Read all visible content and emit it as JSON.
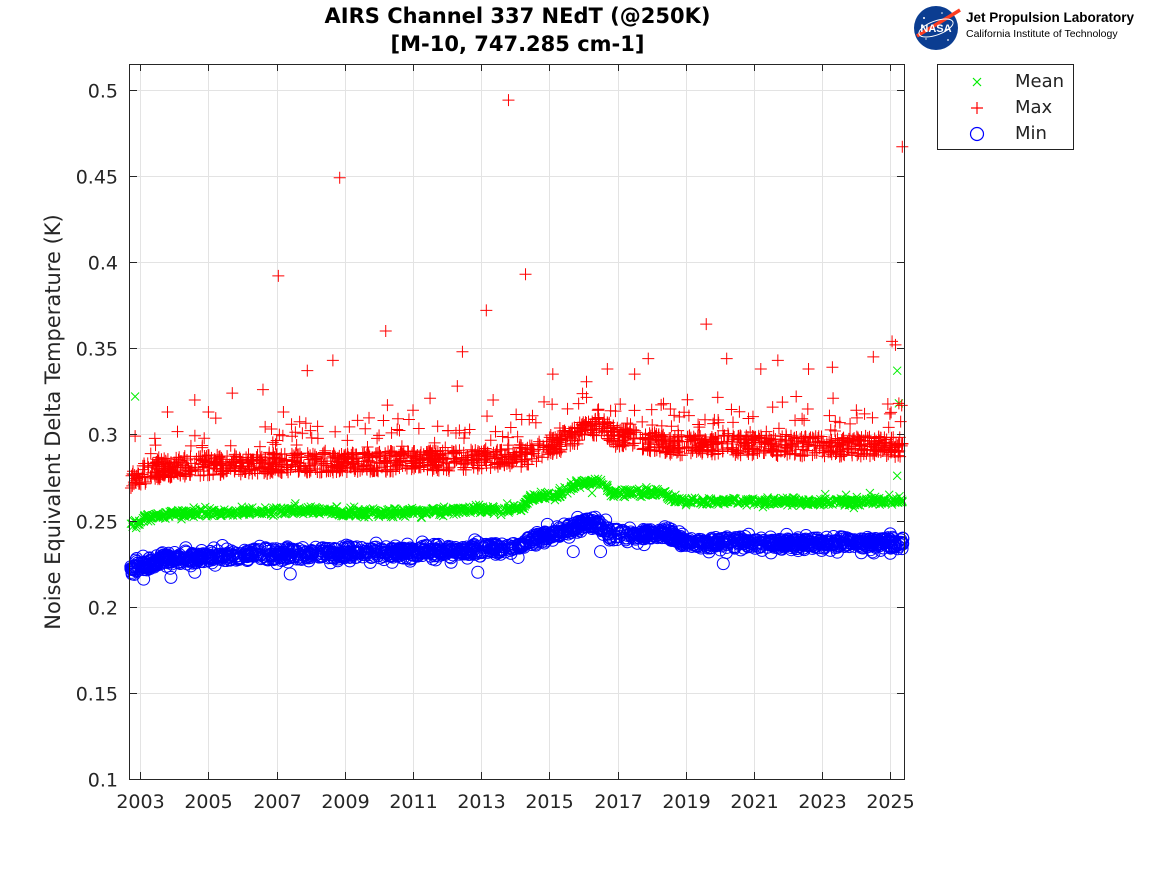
{
  "chart_data": {
    "type": "scatter",
    "title": "AIRS Channel 337 NEdT (@250K)",
    "subtitle": "[M-10, 747.285 cm-1]",
    "xlabel": "",
    "ylabel": "Noise Equivalent Delta Temperature (K)",
    "xlim": [
      2002.7,
      2025.4
    ],
    "ylim": [
      0.1,
      0.515
    ],
    "x_ticks": [
      "2003",
      "2005",
      "2007",
      "2009",
      "2011",
      "2013",
      "2015",
      "2017",
      "2019",
      "2021",
      "2023",
      "2025"
    ],
    "y_ticks": [
      "0.1",
      "0.15",
      "0.2",
      "0.25",
      "0.3",
      "0.35",
      "0.4",
      "0.45",
      "0.5"
    ],
    "grid": true,
    "legend_position": "outside-top-right",
    "series": [
      {
        "name": "Mean",
        "marker": "x",
        "color": "#00ee00",
        "trend": [
          [
            2002.7,
            0.247
          ],
          [
            2003.3,
            0.252
          ],
          [
            2004.0,
            0.254
          ],
          [
            2008.5,
            0.256
          ],
          [
            2008.9,
            0.254
          ],
          [
            2014.2,
            0.257
          ],
          [
            2014.4,
            0.263
          ],
          [
            2015.5,
            0.266
          ],
          [
            2015.8,
            0.272
          ],
          [
            2016.6,
            0.272
          ],
          [
            2016.8,
            0.266
          ],
          [
            2018.4,
            0.266
          ],
          [
            2018.6,
            0.261
          ],
          [
            2025.4,
            0.261
          ]
        ],
        "outliers": [
          [
            2002.85,
            0.322
          ],
          [
            2007.55,
            0.26
          ],
          [
            2015.9,
            0.269
          ],
          [
            2016.25,
            0.266
          ],
          [
            2023.7,
            0.265
          ],
          [
            2024.4,
            0.266
          ],
          [
            2025.2,
            0.337
          ],
          [
            2025.25,
            0.318
          ],
          [
            2025.2,
            0.276
          ]
        ]
      },
      {
        "name": "Max",
        "marker": "+",
        "color": "#ff0000",
        "trend": [
          [
            2002.7,
            0.272
          ],
          [
            2003.5,
            0.278
          ],
          [
            2004.5,
            0.28
          ],
          [
            2008.0,
            0.282
          ],
          [
            2012.0,
            0.283
          ],
          [
            2014.2,
            0.285
          ],
          [
            2015.0,
            0.291
          ],
          [
            2015.7,
            0.297
          ],
          [
            2016.2,
            0.303
          ],
          [
            2016.7,
            0.301
          ],
          [
            2017.0,
            0.296
          ],
          [
            2018.2,
            0.294
          ],
          [
            2018.6,
            0.292
          ],
          [
            2025.4,
            0.291
          ]
        ],
        "outliers": [
          [
            2002.85,
            0.299
          ],
          [
            2003.8,
            0.313
          ],
          [
            2004.6,
            0.32
          ],
          [
            2005.0,
            0.313
          ],
          [
            2005.7,
            0.324
          ],
          [
            2006.6,
            0.326
          ],
          [
            2007.05,
            0.392
          ],
          [
            2007.2,
            0.313
          ],
          [
            2007.9,
            0.337
          ],
          [
            2008.65,
            0.343
          ],
          [
            2008.85,
            0.449
          ],
          [
            2010.2,
            0.36
          ],
          [
            2010.25,
            0.317
          ],
          [
            2011.0,
            0.314
          ],
          [
            2011.5,
            0.321
          ],
          [
            2012.3,
            0.328
          ],
          [
            2012.45,
            0.348
          ],
          [
            2013.15,
            0.372
          ],
          [
            2013.35,
            0.32
          ],
          [
            2013.8,
            0.494
          ],
          [
            2014.3,
            0.393
          ],
          [
            2015.1,
            0.335
          ],
          [
            2016.7,
            0.338
          ],
          [
            2017.5,
            0.335
          ],
          [
            2017.9,
            0.344
          ],
          [
            2019.6,
            0.364
          ],
          [
            2020.2,
            0.344
          ],
          [
            2021.2,
            0.338
          ],
          [
            2021.7,
            0.343
          ],
          [
            2022.6,
            0.338
          ],
          [
            2023.3,
            0.339
          ],
          [
            2024.5,
            0.345
          ],
          [
            2025.05,
            0.354
          ],
          [
            2025.15,
            0.352
          ],
          [
            2025.35,
            0.467
          ],
          [
            2025.25,
            0.318
          ]
        ]
      },
      {
        "name": "Min",
        "marker": "o",
        "color": "#0000ff",
        "trend": [
          [
            2002.7,
            0.222
          ],
          [
            2003.2,
            0.224
          ],
          [
            2003.6,
            0.228
          ],
          [
            2005.0,
            0.229
          ],
          [
            2008.0,
            0.231
          ],
          [
            2012.0,
            0.232
          ],
          [
            2014.0,
            0.234
          ],
          [
            2014.6,
            0.24
          ],
          [
            2015.2,
            0.242
          ],
          [
            2015.8,
            0.247
          ],
          [
            2016.3,
            0.249
          ],
          [
            2016.8,
            0.242
          ],
          [
            2017.5,
            0.241
          ],
          [
            2018.0,
            0.242
          ],
          [
            2018.4,
            0.243
          ],
          [
            2019.0,
            0.237
          ],
          [
            2025.4,
            0.237
          ]
        ],
        "outliers": [
          [
            2003.1,
            0.216
          ],
          [
            2003.9,
            0.217
          ],
          [
            2004.6,
            0.22
          ],
          [
            2007.4,
            0.219
          ],
          [
            2012.9,
            0.22
          ],
          [
            2015.7,
            0.232
          ],
          [
            2016.5,
            0.232
          ],
          [
            2020.1,
            0.225
          ]
        ]
      }
    ]
  },
  "logo": {
    "agency": "NASA",
    "line1": "Jet Propulsion Laboratory",
    "line2": "California Institute of Technology"
  },
  "colors": {
    "mean": "#00ee00",
    "max": "#ff0000",
    "min": "#0000ff",
    "grid": "#e3e3e3",
    "axis": "#262626"
  }
}
